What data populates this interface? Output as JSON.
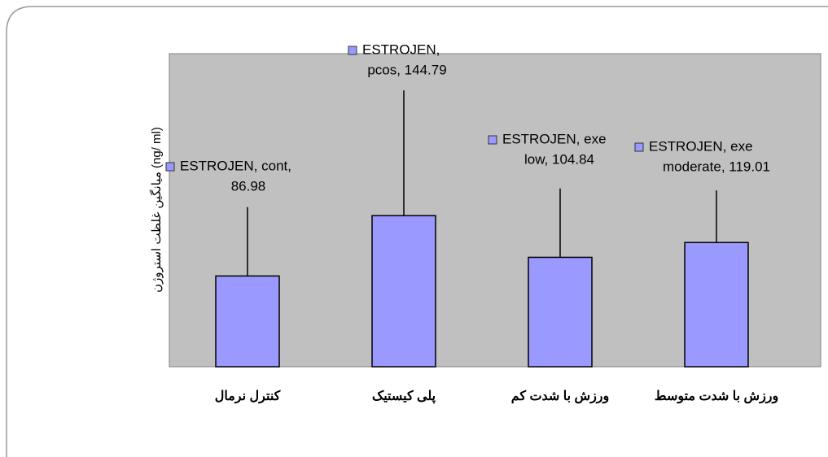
{
  "chart_data": {
    "type": "bar",
    "y_axis_label": "میانگین غلظت استروژن (ng/ ml)",
    "categories": [
      "کنترل نرمال",
      "پلی کیستیک",
      "ورزش با شدت کم",
      "ورزش با شدت متوسط"
    ],
    "values": [
      86.98,
      144.79,
      104.84,
      119.01
    ],
    "errors": [
      66,
      120,
      66,
      50
    ],
    "label_prefixes": [
      "ESTROJEN, cont,",
      "ESTROJEN,",
      "ESTROJEN, exe",
      "ESTROJEN, exe"
    ],
    "value_labels": [
      "86.98",
      "pcos, 144.79",
      "low, 104.84",
      "moderate, 119.01"
    ],
    "color": "#9999ff",
    "plot_background": "#c0c0c0",
    "ylim": [
      0,
      300
    ]
  }
}
